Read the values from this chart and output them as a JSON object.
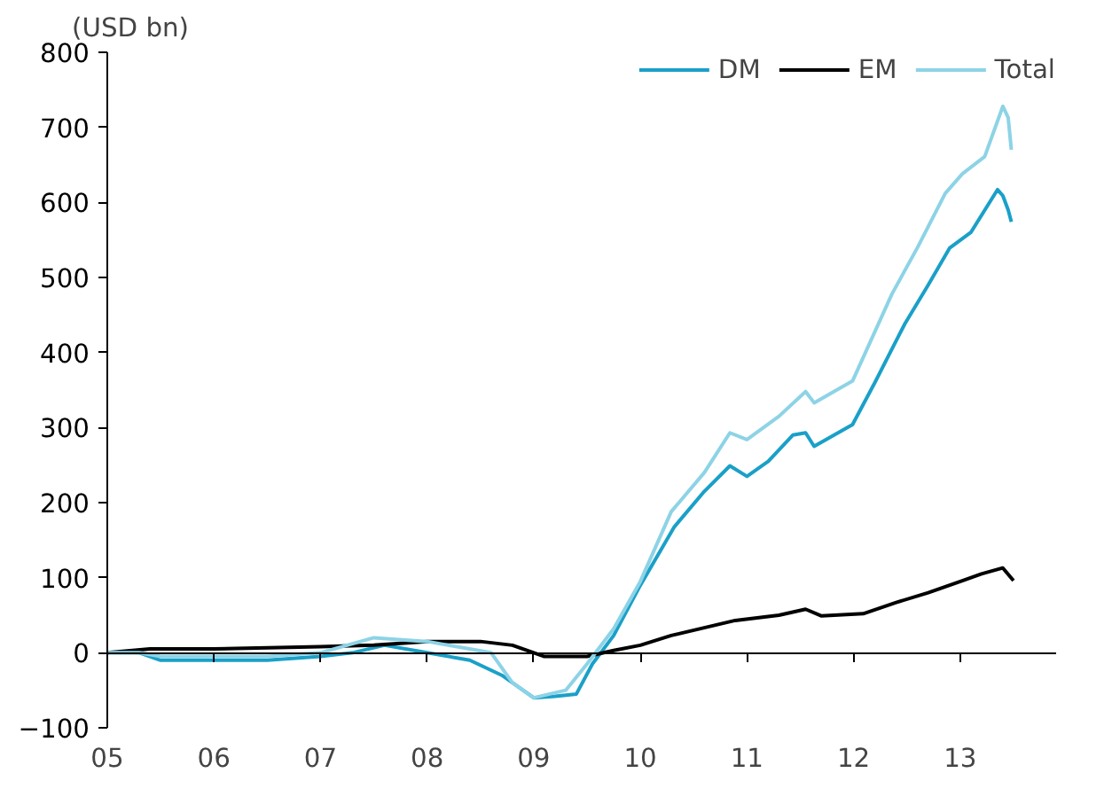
{
  "chart_data": {
    "type": "line",
    "ylabel": "(USD bn)",
    "xlim": [
      2005,
      2013.9
    ],
    "ylim": [
      -100,
      800
    ],
    "xticks": [
      {
        "value": 2005,
        "label": "05"
      },
      {
        "value": 2006,
        "label": "06"
      },
      {
        "value": 2007,
        "label": "07"
      },
      {
        "value": 2008,
        "label": "08"
      },
      {
        "value": 2009,
        "label": "09"
      },
      {
        "value": 2010,
        "label": "10"
      },
      {
        "value": 2011,
        "label": "11"
      },
      {
        "value": 2012,
        "label": "12"
      },
      {
        "value": 2013,
        "label": "13"
      }
    ],
    "yticks": [
      -100,
      0,
      100,
      200,
      300,
      400,
      500,
      600,
      700,
      800
    ],
    "legend": "top right",
    "marker": "none",
    "line_style": "solid",
    "series": [
      {
        "name": "DM",
        "color": "#1aa0c8",
        "x": [
          2005,
          2005.3,
          2005.5,
          2006,
          2006.5,
          2007,
          2007.3,
          2007.6,
          2008,
          2008.4,
          2008.7,
          2009,
          2009.2,
          2009.4,
          2009.55,
          2009.75,
          2010,
          2010.32,
          2010.6,
          2010.84,
          2011,
          2011.2,
          2011.43,
          2011.55,
          2011.63,
          2011.99,
          2012.2,
          2012.48,
          2012.7,
          2012.9,
          2013.1,
          2013.35,
          2013.4,
          2013.45,
          2013.48
        ],
        "values": [
          0,
          0,
          -10,
          -10,
          -10,
          -5,
          0,
          10,
          0,
          -10,
          -30,
          -60,
          -58,
          -55,
          -15,
          23,
          90,
          168,
          215,
          249,
          235,
          255,
          290,
          293,
          275,
          304,
          360,
          438,
          490,
          539,
          560,
          617,
          609,
          590,
          574
        ]
      },
      {
        "name": "EM",
        "color": "#000000",
        "x": [
          2005,
          2005.4,
          2006,
          2007,
          2007.5,
          2008,
          2008.5,
          2008.8,
          2009,
          2009.1,
          2009.5,
          2009.75,
          2010,
          2010.29,
          2010.89,
          2011.3,
          2011.55,
          2011.7,
          2012.09,
          2012.4,
          2012.7,
          2013.02,
          2013.2,
          2013.4,
          2013.5
        ],
        "values": [
          0,
          5,
          5,
          8,
          10,
          15,
          15,
          10,
          0,
          -5,
          -5,
          3,
          10,
          23,
          43,
          50,
          58,
          49,
          52,
          67,
          80,
          96,
          105,
          113,
          96
        ]
      },
      {
        "name": "Total",
        "color": "#8dd3e6",
        "x": [
          2005,
          2005.3,
          2005.5,
          2006,
          2006.5,
          2007,
          2007.5,
          2008,
          2008.2,
          2008.6,
          2008.8,
          2009,
          2009.3,
          2009.5,
          2009.75,
          2010,
          2010.29,
          2010.6,
          2010.84,
          2011,
          2011.3,
          2011.55,
          2011.63,
          2011.99,
          2012.36,
          2012.6,
          2012.86,
          2013.02,
          2013.23,
          2013.4,
          2013.45,
          2013.48
        ],
        "values": [
          0,
          0,
          -5,
          -5,
          -5,
          0,
          20,
          15,
          10,
          0,
          -40,
          -60,
          -50,
          -15,
          32,
          95,
          188,
          240,
          293,
          284,
          315,
          348,
          333,
          362,
          478,
          540,
          612,
          638,
          661,
          728,
          713,
          670
        ]
      }
    ]
  }
}
